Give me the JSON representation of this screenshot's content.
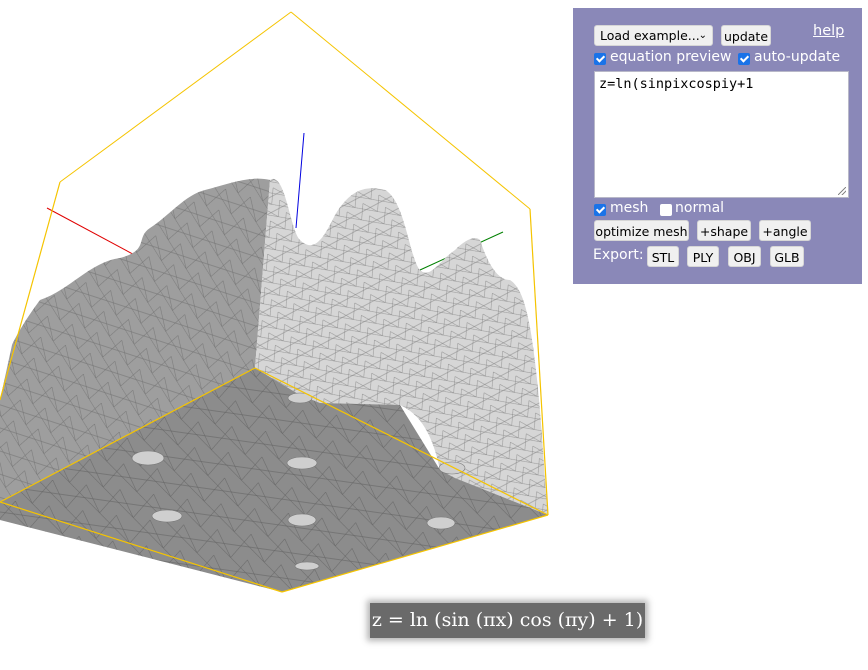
{
  "toolbar": {
    "load_example_label": "Load example...",
    "update_label": "update",
    "help_label": "help"
  },
  "options": {
    "equation_preview_label": "equation preview",
    "equation_preview_checked": true,
    "auto_update_label": "auto-update",
    "auto_update_checked": true,
    "mesh_label": "mesh",
    "mesh_checked": true,
    "normal_label": "normal",
    "normal_checked": false
  },
  "equation_input": {
    "value": "z=ln(sinpixcospiy+1"
  },
  "actions": {
    "optimize_mesh_label": "optimize mesh",
    "add_shape_label": "+shape",
    "add_angle_label": "+angle"
  },
  "export": {
    "label": "Export:",
    "formats": [
      "STL",
      "PLY",
      "OBJ",
      "GLB"
    ]
  },
  "equation_preview": {
    "text": "z = ln (sin (πx) cos (πy) + 1)"
  },
  "colors": {
    "panel_background": "#8a88b8",
    "bounding_box": "#f5c400",
    "axis_x": "#e00000",
    "axis_y": "#008000",
    "axis_z": "#0000e0",
    "mesh_light": "#d8d8d8",
    "mesh_dark": "#8c8c8c"
  }
}
